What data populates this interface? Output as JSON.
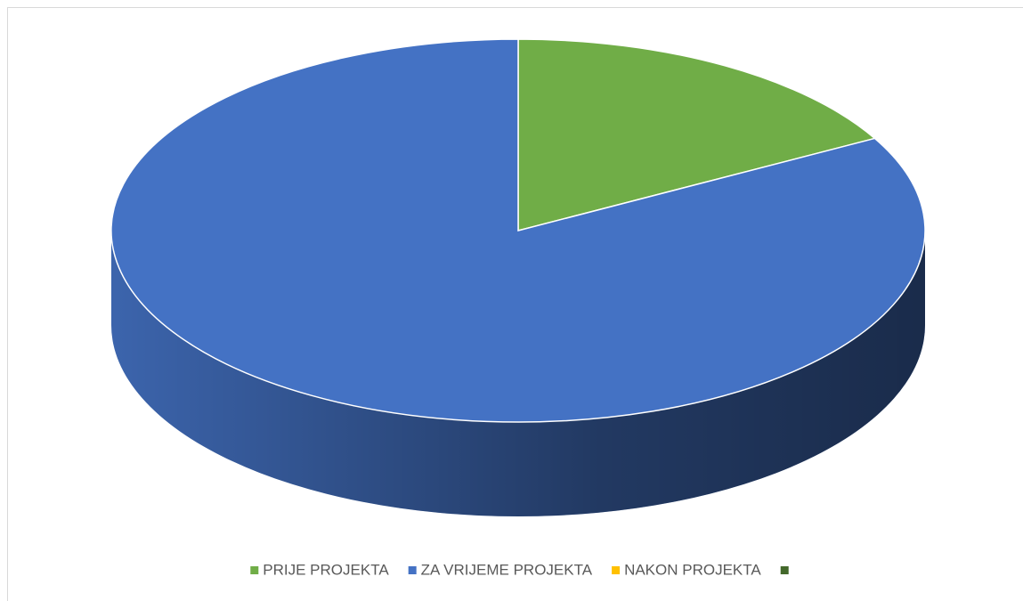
{
  "chart_data": {
    "type": "pie",
    "three_d": true,
    "categories": [
      "PRIJE PROJEKTA",
      "ZA VRIJEME PROJEKTA",
      "NAKON PROJEKTA",
      null
    ],
    "values": [
      17,
      83,
      0,
      0
    ],
    "colors": [
      "#70ad47",
      "#4472c4",
      "#ffc000",
      "#43682b"
    ],
    "legend": "bottom"
  }
}
